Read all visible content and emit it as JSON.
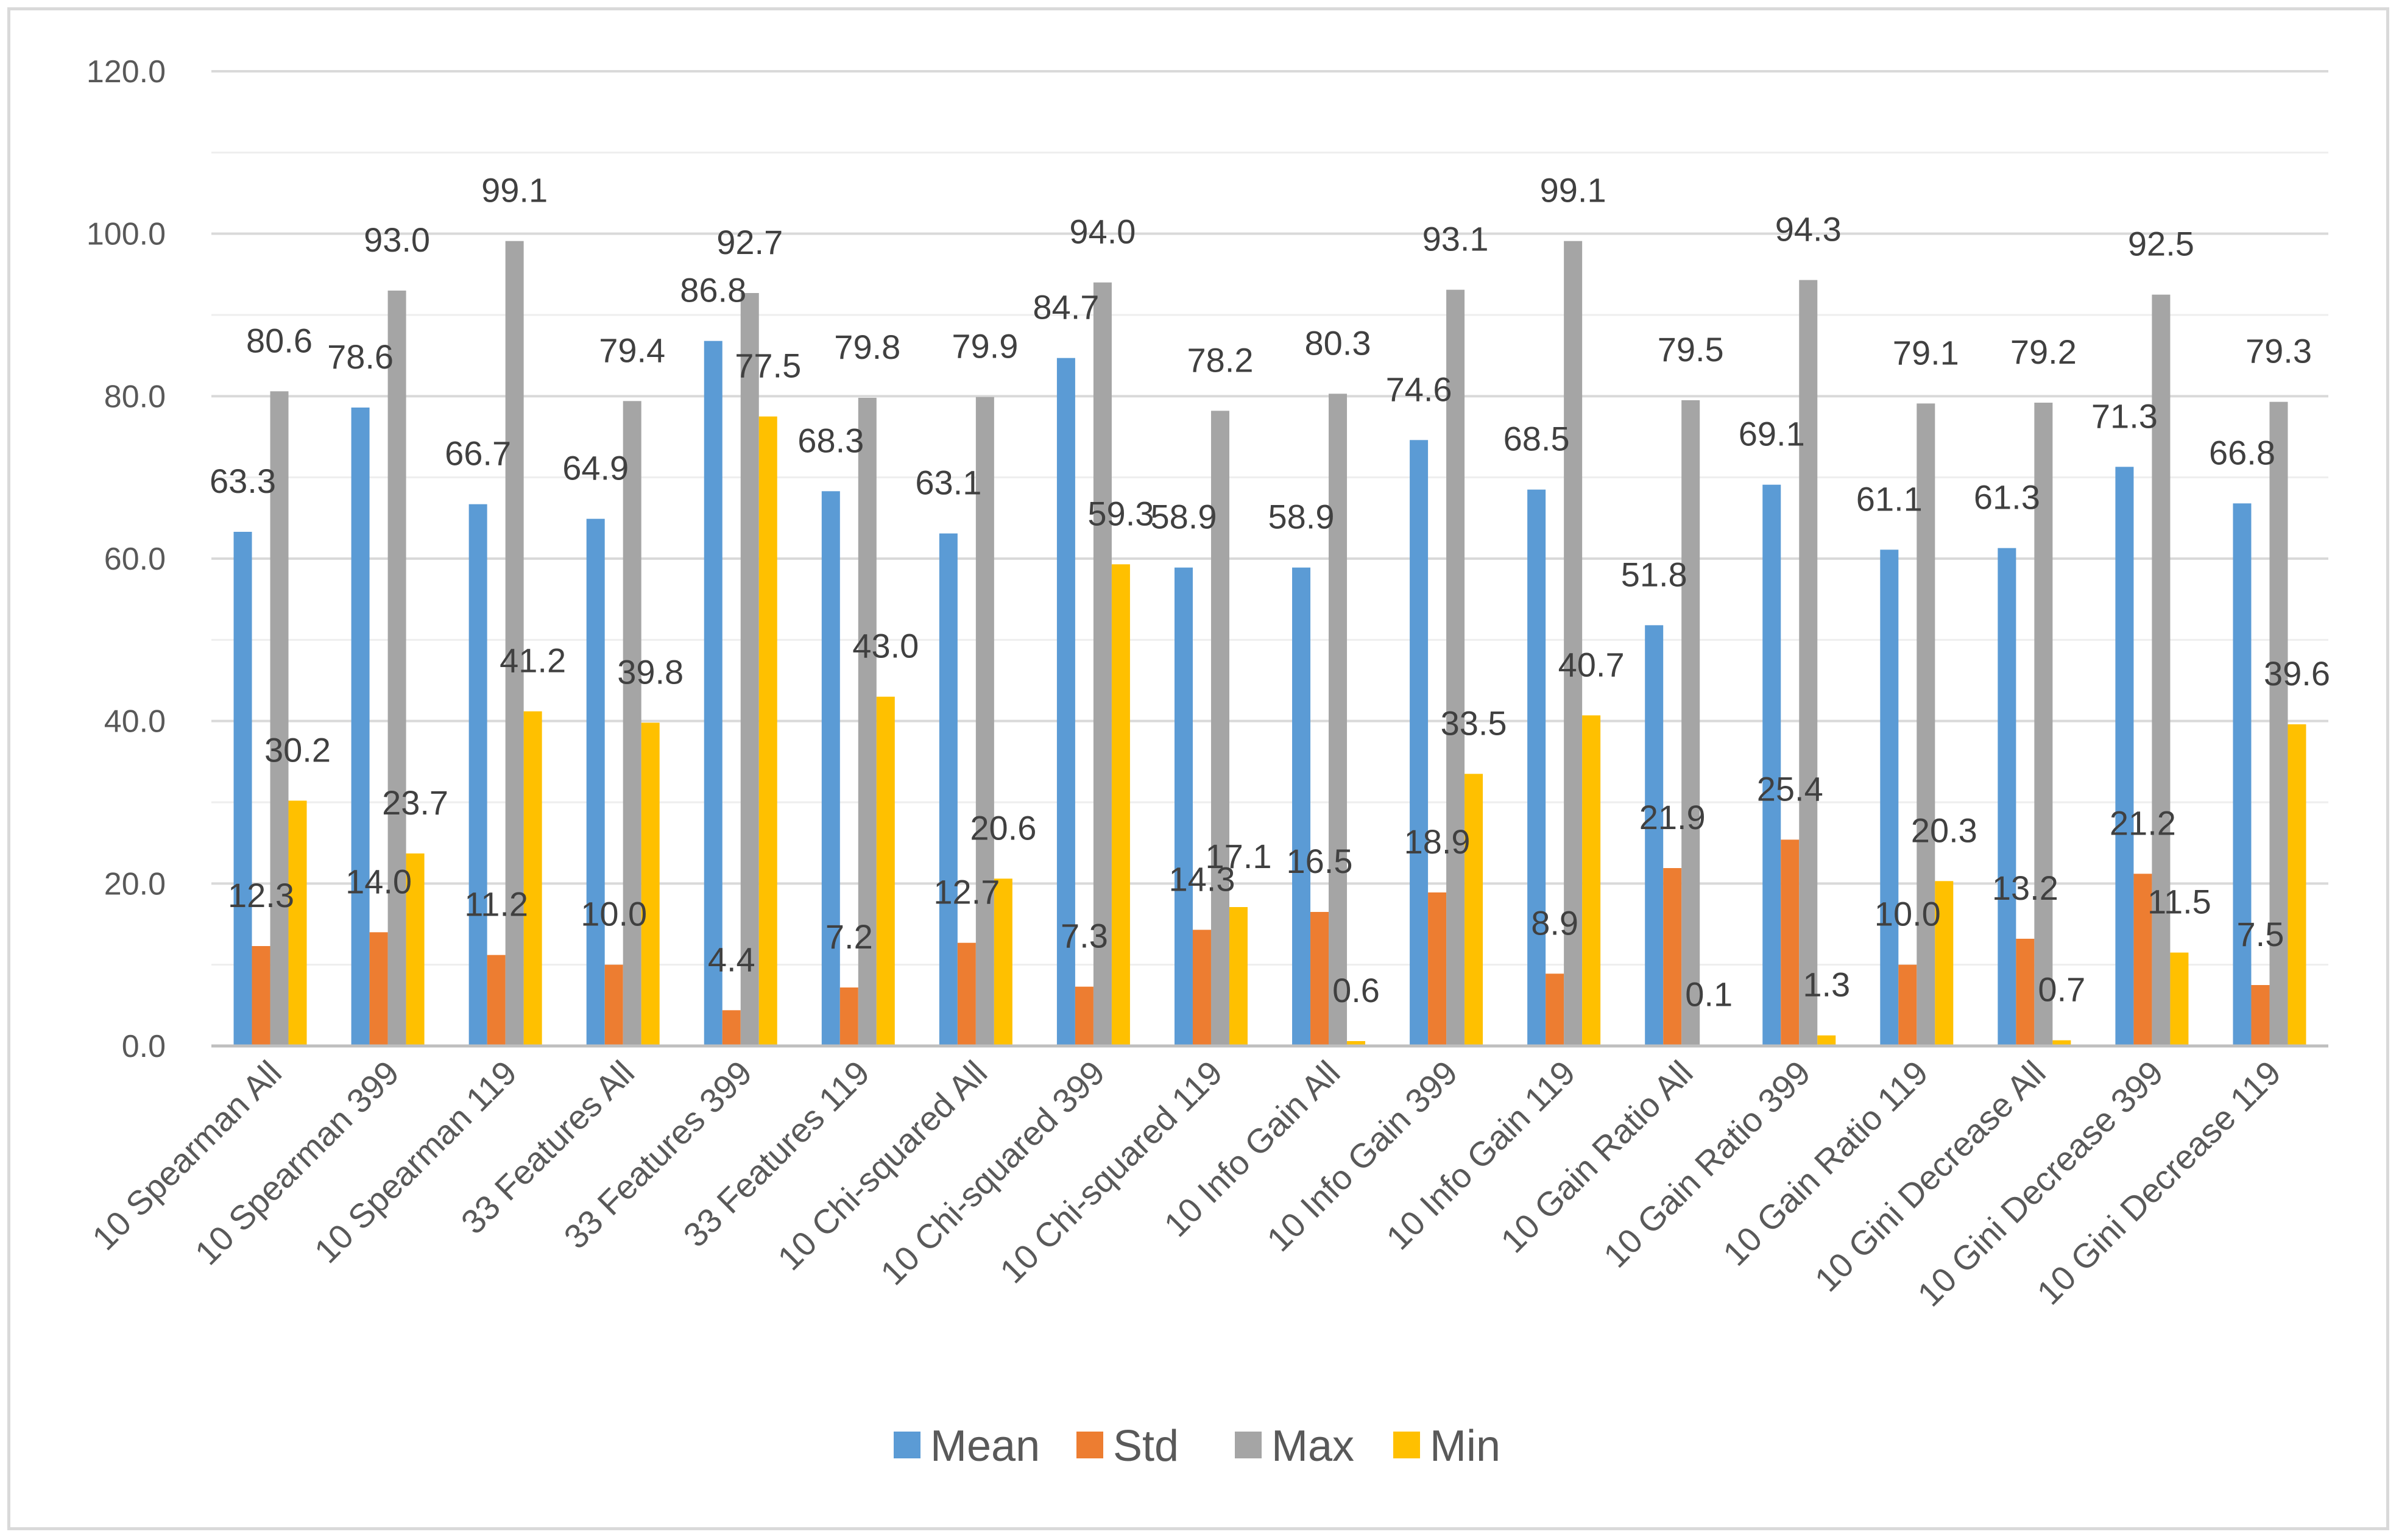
{
  "chart_data": {
    "type": "bar",
    "title": "",
    "xlabel": "",
    "ylabel": "",
    "ylim": [
      0,
      120
    ],
    "y_ticks": [
      "0.0",
      "20.0",
      "40.0",
      "60.0",
      "80.0",
      "100.0",
      "120.0"
    ],
    "grid": true,
    "legend_position": "bottom",
    "categories": [
      "10 Spearman All",
      "10 Spearman 399",
      "10 Spearman 119",
      "33 Features All",
      "33 Features 399",
      "33 Features 119",
      "10 Chi-squared All",
      "10  Chi-squared 399",
      "10  Chi-squared 119",
      "10 Info Gain All",
      "10 Info Gain 399",
      "10 Info Gain 119",
      "10 Gain Ratio All",
      "10 Gain Ratio 399",
      "10 Gain Ratio 119",
      "10 Gini Decrease All",
      "10 Gini Decrease 399",
      "10 Gini Decrease 119"
    ],
    "series": [
      {
        "name": "Mean",
        "color": "#5b9bd5",
        "values": [
          63.3,
          78.6,
          66.7,
          64.9,
          86.8,
          68.3,
          63.1,
          84.7,
          58.9,
          58.9,
          74.6,
          68.5,
          51.8,
          69.1,
          61.1,
          61.3,
          71.3,
          66.8
        ],
        "labels": [
          "63.3",
          "78.6",
          "66.7",
          "64.9",
          "86.8",
          "68.3",
          "63.1",
          "84.7",
          "58.9",
          "58.9",
          "74.6",
          "68.5",
          "51.8",
          "69.1",
          "61.1",
          "61.3",
          "71.3",
          "66.8"
        ]
      },
      {
        "name": "Std",
        "color": "#ed7d31",
        "values": [
          12.3,
          14.0,
          11.2,
          10.0,
          4.4,
          7.2,
          12.7,
          7.3,
          14.3,
          16.5,
          18.9,
          8.9,
          21.9,
          25.4,
          10.0,
          13.2,
          21.2,
          7.5
        ],
        "labels": [
          "12.3",
          "14.0",
          "11.2",
          "10.0",
          "4.4",
          "7.2",
          "12.7",
          "7.3",
          "14.3",
          "16.5",
          "18.9",
          "8.9",
          "21.9",
          "25.4",
          "10.0",
          "13.2",
          "21.2",
          "7.5"
        ]
      },
      {
        "name": "Max",
        "color": "#a5a5a5",
        "values": [
          80.6,
          93.0,
          99.1,
          79.4,
          92.7,
          79.8,
          79.9,
          94.0,
          78.2,
          80.3,
          93.1,
          99.1,
          79.5,
          94.3,
          79.1,
          79.2,
          92.5,
          79.3
        ],
        "labels": [
          "80.6",
          "93.0",
          "99.1",
          "79.4",
          "92.7",
          "79.8",
          "79.9",
          "94.0",
          "78.2",
          "80.3",
          "93.1",
          "99.1",
          "79.5",
          "94.3",
          "79.1",
          "79.2",
          "92.5",
          "79.3"
        ]
      },
      {
        "name": "Min",
        "color": "#ffc000",
        "values": [
          30.2,
          23.7,
          41.2,
          39.8,
          77.5,
          43.0,
          20.6,
          59.3,
          17.1,
          0.6,
          33.5,
          40.7,
          0.1,
          1.3,
          20.3,
          0.7,
          11.5,
          39.6
        ],
        "labels": [
          "30.2",
          "23.7",
          "41.2",
          "39.8",
          "77.5",
          "43.0",
          "20.6",
          "59.3",
          "17.1",
          "0.6",
          "33.5",
          "40.7",
          "0.1",
          "1.3",
          "20.3",
          "0.7",
          "11.5",
          "39.6"
        ]
      }
    ]
  },
  "style": {
    "gridline_color": "#d9d9d9",
    "axis_line_color": "#bfbfbf",
    "label_color": "#595959",
    "data_label_color": "#404040"
  }
}
